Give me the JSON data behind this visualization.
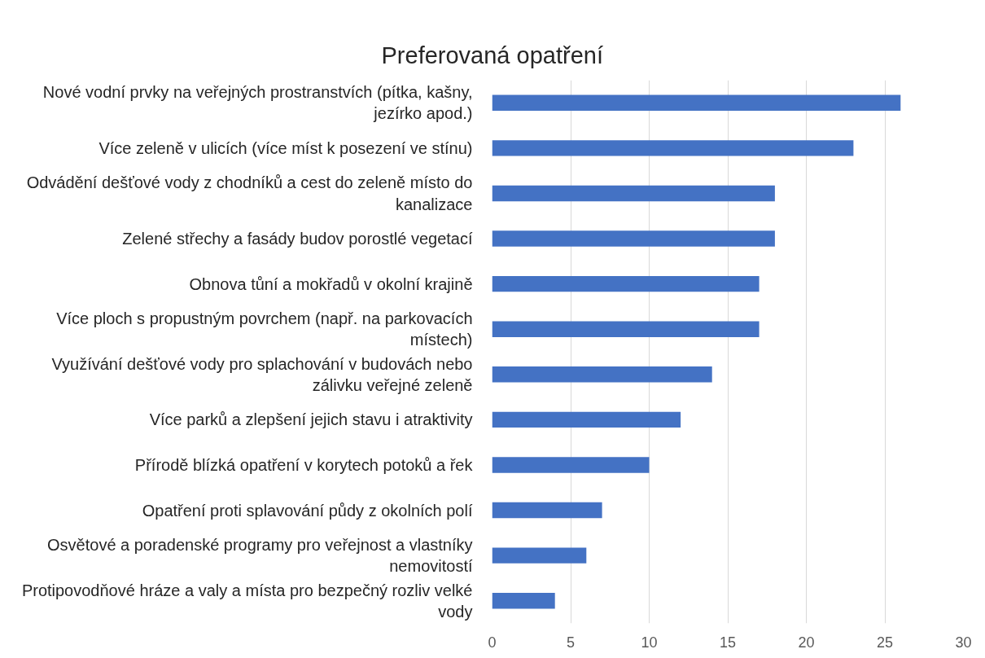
{
  "chart_data": {
    "type": "bar",
    "orientation": "horizontal",
    "title": "Preferovaná opatření",
    "categories": [
      "Nové vodní prvky na veřejných prostranstvích (pítka, kašny, jezírko apod.)",
      "Více zeleně v ulicích (více míst k posezení ve stínu)",
      "Odvádění dešťové vody z chodníků a cest do zeleně místo do kanalizace",
      "Zelené střechy a fasády budov porostlé vegetací",
      "Obnova tůní a mokřadů v okolní krajině",
      "Více ploch s propustným povrchem (např. na parkovacích místech)",
      "Využívání dešťové vody pro splachování v budovách nebo zálivku veřejné zeleně",
      "Více parků a zlepšení jejich stavu i atraktivity",
      "Přírodě blízká opatření v korytech potoků a řek",
      "Opatření proti splavování půdy z okolních polí",
      "Osvětové a poradenské programy pro veřejnost a vlastníky nemovitostí",
      "Protipovodňové hráze a valy a místa pro bezpečný rozliv velké vody"
    ],
    "values": [
      26,
      23,
      18,
      18,
      17,
      17,
      14,
      12,
      10,
      7,
      6,
      4
    ],
    "color": "#4472c4",
    "xlim": [
      0,
      30
    ],
    "xticks": [
      0,
      5,
      10,
      15,
      20,
      25,
      30
    ],
    "grid": "x"
  }
}
